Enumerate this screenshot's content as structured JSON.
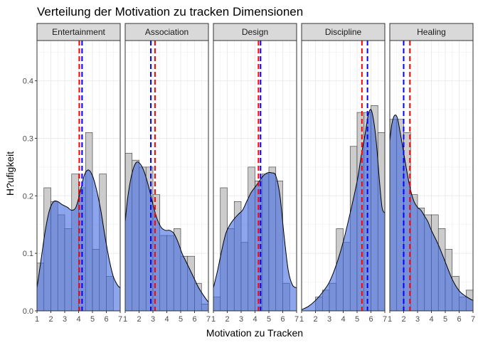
{
  "chart_data": {
    "type": "histogram-density-facets",
    "title": "Verteilung der Motivation zu tracken  Dimensionen",
    "xlabel": "Motivation zu Tracken",
    "ylabel": "H?ufigkeit",
    "xlim": [
      1,
      7
    ],
    "ylim": [
      0,
      0.47
    ],
    "x_ticks": [
      "1",
      "2",
      "3",
      "4",
      "5",
      "6",
      "7"
    ],
    "y_ticks": [
      "0.0",
      "0.1",
      "0.2",
      "0.3",
      "0.4"
    ],
    "y_tick_values": [
      0,
      0.1,
      0.2,
      0.3,
      0.4
    ],
    "bin_width": 0.5,
    "grid": true,
    "colors": {
      "hist_fill": "#cccccc",
      "hist_stroke": "#333333",
      "density_fill": "#4169e1",
      "density_opacity": 0.6,
      "density_stroke": "#000000",
      "mean_line": "#ff0000",
      "median_line": "#0000ff",
      "strip_fill": "#d9d9d9",
      "panel_bg": "#ffffff",
      "grid": "#ebebeb"
    },
    "facets": [
      {
        "name": "Entertainment",
        "bins": [
          {
            "x0": 1.0,
            "x1": 1.5,
            "value": 0.083
          },
          {
            "x0": 1.5,
            "x1": 2.0,
            "value": 0.214
          },
          {
            "x0": 2.0,
            "x1": 2.5,
            "value": 0.19
          },
          {
            "x0": 2.5,
            "x1": 3.0,
            "value": 0.167
          },
          {
            "x0": 3.0,
            "x1": 3.5,
            "value": 0.143
          },
          {
            "x0": 3.5,
            "x1": 4.0,
            "value": 0.238
          },
          {
            "x0": 4.0,
            "x1": 4.5,
            "value": 0.214
          },
          {
            "x0": 4.5,
            "x1": 5.0,
            "value": 0.31
          },
          {
            "x0": 5.0,
            "x1": 5.5,
            "value": 0.107
          },
          {
            "x0": 5.5,
            "x1": 6.0,
            "value": 0.238
          },
          {
            "x0": 6.0,
            "x1": 6.5,
            "value": 0.06
          }
        ],
        "density": [
          [
            1.0,
            0.04
          ],
          [
            1.3,
            0.09
          ],
          [
            1.6,
            0.14
          ],
          [
            1.9,
            0.175
          ],
          [
            2.2,
            0.19
          ],
          [
            2.5,
            0.19
          ],
          [
            2.8,
            0.185
          ],
          [
            3.2,
            0.18
          ],
          [
            3.5,
            0.175
          ],
          [
            3.8,
            0.18
          ],
          [
            4.1,
            0.205
          ],
          [
            4.4,
            0.235
          ],
          [
            4.7,
            0.245
          ],
          [
            5.0,
            0.235
          ],
          [
            5.3,
            0.21
          ],
          [
            5.6,
            0.175
          ],
          [
            5.9,
            0.13
          ],
          [
            6.2,
            0.09
          ],
          [
            6.5,
            0.06
          ],
          [
            6.8,
            0.045
          ],
          [
            7.0,
            0.04
          ]
        ],
        "mean": 4.05,
        "median": 4.25
      },
      {
        "name": "Association",
        "bins": [
          {
            "x0": 1.0,
            "x1": 1.5,
            "value": 0.274
          },
          {
            "x0": 1.5,
            "x1": 2.0,
            "value": 0.262
          },
          {
            "x0": 2.0,
            "x1": 2.5,
            "value": 0.25
          },
          {
            "x0": 2.5,
            "x1": 3.0,
            "value": 0.25
          },
          {
            "x0": 3.0,
            "x1": 3.5,
            "value": 0.202
          },
          {
            "x0": 3.5,
            "x1": 4.0,
            "value": 0.131
          },
          {
            "x0": 4.0,
            "x1": 4.5,
            "value": 0.131
          },
          {
            "x0": 4.5,
            "x1": 5.0,
            "value": 0.143
          },
          {
            "x0": 5.0,
            "x1": 5.5,
            "value": 0.095
          },
          {
            "x0": 5.5,
            "x1": 6.0,
            "value": 0.095
          },
          {
            "x0": 6.0,
            "x1": 6.5,
            "value": 0.048
          },
          {
            "x0": 6.5,
            "x1": 7.0,
            "value": 0.012
          }
        ],
        "density": [
          [
            1.0,
            0.155
          ],
          [
            1.2,
            0.2
          ],
          [
            1.5,
            0.24
          ],
          [
            1.8,
            0.258
          ],
          [
            2.1,
            0.255
          ],
          [
            2.4,
            0.24
          ],
          [
            2.7,
            0.215
          ],
          [
            3.0,
            0.185
          ],
          [
            3.3,
            0.16
          ],
          [
            3.6,
            0.145
          ],
          [
            3.9,
            0.14
          ],
          [
            4.2,
            0.14
          ],
          [
            4.5,
            0.135
          ],
          [
            4.8,
            0.12
          ],
          [
            5.1,
            0.1
          ],
          [
            5.4,
            0.085
          ],
          [
            5.7,
            0.07
          ],
          [
            6.0,
            0.055
          ],
          [
            6.3,
            0.04
          ],
          [
            6.7,
            0.025
          ],
          [
            7.0,
            0.015
          ]
        ],
        "mean": 3.15,
        "median": 2.85
      },
      {
        "name": "Design",
        "bins": [
          {
            "x0": 1.0,
            "x1": 1.5,
            "value": 0.024
          },
          {
            "x0": 1.5,
            "x1": 2.0,
            "value": 0.214
          },
          {
            "x0": 2.0,
            "x1": 2.5,
            "value": 0.143
          },
          {
            "x0": 2.5,
            "x1": 3.0,
            "value": 0.19
          },
          {
            "x0": 3.0,
            "x1": 3.5,
            "value": 0.119
          },
          {
            "x0": 3.5,
            "x1": 4.0,
            "value": 0.25
          },
          {
            "x0": 4.0,
            "x1": 4.5,
            "value": 0.226
          },
          {
            "x0": 4.5,
            "x1": 5.0,
            "value": 0.238
          },
          {
            "x0": 5.0,
            "x1": 5.5,
            "value": 0.25
          },
          {
            "x0": 5.5,
            "x1": 6.0,
            "value": 0.226
          },
          {
            "x0": 6.0,
            "x1": 6.5,
            "value": 0.048
          }
        ],
        "density": [
          [
            1.0,
            0.04
          ],
          [
            1.3,
            0.07
          ],
          [
            1.6,
            0.105
          ],
          [
            1.9,
            0.135
          ],
          [
            2.2,
            0.15
          ],
          [
            2.5,
            0.16
          ],
          [
            2.8,
            0.168
          ],
          [
            3.1,
            0.175
          ],
          [
            3.4,
            0.19
          ],
          [
            3.7,
            0.205
          ],
          [
            4.0,
            0.215
          ],
          [
            4.3,
            0.225
          ],
          [
            4.6,
            0.235
          ],
          [
            4.9,
            0.24
          ],
          [
            5.2,
            0.24
          ],
          [
            5.5,
            0.235
          ],
          [
            5.8,
            0.2
          ],
          [
            6.1,
            0.13
          ],
          [
            6.4,
            0.07
          ],
          [
            6.7,
            0.045
          ],
          [
            7.0,
            0.04
          ]
        ],
        "mean": 4.25,
        "median": 4.4
      },
      {
        "name": "Discipline",
        "bins": [
          {
            "x0": 2.0,
            "x1": 2.5,
            "value": 0.024
          },
          {
            "x0": 2.5,
            "x1": 3.0,
            "value": 0.036
          },
          {
            "x0": 3.0,
            "x1": 3.5,
            "value": 0.048
          },
          {
            "x0": 3.5,
            "x1": 4.0,
            "value": 0.143
          },
          {
            "x0": 4.0,
            "x1": 4.5,
            "value": 0.119
          },
          {
            "x0": 4.5,
            "x1": 5.0,
            "value": 0.286
          },
          {
            "x0": 5.0,
            "x1": 5.5,
            "value": 0.345
          },
          {
            "x0": 5.5,
            "x1": 6.0,
            "value": 0.345
          },
          {
            "x0": 6.0,
            "x1": 6.5,
            "value": 0.357
          },
          {
            "x0": 6.5,
            "x1": 7.0,
            "value": 0.31
          }
        ],
        "density": [
          [
            1.0,
            0.002
          ],
          [
            1.5,
            0.008
          ],
          [
            2.0,
            0.018
          ],
          [
            2.5,
            0.032
          ],
          [
            3.0,
            0.05
          ],
          [
            3.5,
            0.08
          ],
          [
            4.0,
            0.12
          ],
          [
            4.5,
            0.17
          ],
          [
            5.0,
            0.225
          ],
          [
            5.3,
            0.27
          ],
          [
            5.6,
            0.31
          ],
          [
            5.8,
            0.34
          ],
          [
            6.0,
            0.35
          ],
          [
            6.2,
            0.33
          ],
          [
            6.4,
            0.29
          ],
          [
            6.6,
            0.23
          ],
          [
            6.8,
            0.18
          ],
          [
            7.0,
            0.17
          ]
        ],
        "mean": 5.35,
        "median": 5.75
      },
      {
        "name": "Healing",
        "bins": [
          {
            "x0": 1.0,
            "x1": 1.5,
            "value": 0.333
          },
          {
            "x0": 1.5,
            "x1": 2.0,
            "value": 0.333
          },
          {
            "x0": 2.0,
            "x1": 2.5,
            "value": 0.31
          },
          {
            "x0": 2.5,
            "x1": 3.0,
            "value": 0.202
          },
          {
            "x0": 3.0,
            "x1": 3.5,
            "value": 0.179
          },
          {
            "x0": 3.5,
            "x1": 4.0,
            "value": 0.167
          },
          {
            "x0": 4.0,
            "x1": 4.5,
            "value": 0.167
          },
          {
            "x0": 4.5,
            "x1": 5.0,
            "value": 0.143
          },
          {
            "x0": 5.0,
            "x1": 5.5,
            "value": 0.107
          },
          {
            "x0": 5.5,
            "x1": 6.0,
            "value": 0.06
          },
          {
            "x0": 6.0,
            "x1": 6.5,
            "value": 0.024
          },
          {
            "x0": 6.5,
            "x1": 7.0,
            "value": 0.036
          }
        ],
        "density": [
          [
            1.0,
            0.295
          ],
          [
            1.15,
            0.325
          ],
          [
            1.35,
            0.34
          ],
          [
            1.55,
            0.335
          ],
          [
            1.75,
            0.31
          ],
          [
            2.0,
            0.275
          ],
          [
            2.25,
            0.24
          ],
          [
            2.5,
            0.21
          ],
          [
            2.75,
            0.19
          ],
          [
            3.0,
            0.18
          ],
          [
            3.25,
            0.175
          ],
          [
            3.5,
            0.165
          ],
          [
            3.75,
            0.155
          ],
          [
            4.0,
            0.14
          ],
          [
            4.5,
            0.115
          ],
          [
            5.0,
            0.085
          ],
          [
            5.5,
            0.055
          ],
          [
            6.0,
            0.035
          ],
          [
            6.5,
            0.025
          ],
          [
            7.0,
            0.018
          ]
        ],
        "mean": 2.45,
        "median": 2.0
      }
    ]
  }
}
